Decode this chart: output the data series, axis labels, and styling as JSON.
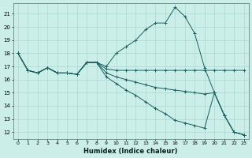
{
  "xlabel": "Humidex (Indice chaleur)",
  "bg_color": "#cceee8",
  "grid_color": "#aad8d2",
  "line_color": "#1a6060",
  "xlim": [
    -0.5,
    23.5
  ],
  "ylim": [
    11.5,
    21.8
  ],
  "yticks": [
    12,
    13,
    14,
    15,
    16,
    17,
    18,
    19,
    20,
    21
  ],
  "xticks": [
    0,
    1,
    2,
    3,
    4,
    5,
    6,
    7,
    8,
    9,
    10,
    11,
    12,
    13,
    14,
    15,
    16,
    17,
    18,
    19,
    20,
    21,
    22,
    23
  ],
  "lines": [
    {
      "x": [
        0,
        1,
        2,
        3,
        4,
        5,
        6,
        7,
        8,
        9,
        10,
        11,
        12,
        13,
        14,
        15,
        16,
        17,
        18,
        19,
        20,
        21,
        22,
        23
      ],
      "y": [
        18.0,
        16.7,
        16.5,
        16.9,
        16.5,
        16.5,
        16.4,
        17.3,
        17.3,
        17.0,
        18.0,
        18.5,
        19.0,
        19.8,
        20.3,
        20.3,
        21.5,
        20.8,
        19.5,
        16.9,
        15.0,
        13.3,
        12.0,
        11.8
      ]
    },
    {
      "x": [
        0,
        1,
        2,
        3,
        4,
        5,
        6,
        7,
        8,
        9,
        10,
        11,
        12,
        13,
        14,
        15,
        16,
        17,
        18,
        19,
        20,
        21,
        22,
        23
      ],
      "y": [
        18.0,
        16.7,
        16.5,
        16.9,
        16.5,
        16.5,
        16.4,
        17.3,
        17.3,
        16.8,
        16.7,
        16.7,
        16.7,
        16.7,
        16.7,
        16.7,
        16.7,
        16.7,
        16.7,
        16.7,
        16.7,
        16.7,
        16.7,
        16.7
      ]
    },
    {
      "x": [
        0,
        1,
        2,
        3,
        4,
        5,
        6,
        7,
        8,
        9,
        10,
        11,
        12,
        13,
        14,
        15,
        16,
        17,
        18,
        19,
        20,
        21,
        22,
        23
      ],
      "y": [
        18.0,
        16.7,
        16.5,
        16.9,
        16.5,
        16.5,
        16.4,
        17.3,
        17.3,
        16.5,
        16.2,
        16.0,
        15.8,
        15.6,
        15.4,
        15.3,
        15.2,
        15.1,
        15.0,
        14.9,
        15.0,
        13.3,
        12.0,
        11.8
      ]
    },
    {
      "x": [
        0,
        1,
        2,
        3,
        4,
        5,
        6,
        7,
        8,
        9,
        10,
        11,
        12,
        13,
        14,
        15,
        16,
        17,
        18,
        19,
        20,
        21,
        22,
        23
      ],
      "y": [
        18.0,
        16.7,
        16.5,
        16.9,
        16.5,
        16.5,
        16.4,
        17.3,
        17.3,
        16.2,
        15.7,
        15.2,
        14.8,
        14.3,
        13.8,
        13.4,
        12.9,
        12.7,
        12.5,
        12.3,
        15.0,
        13.3,
        12.0,
        11.8
      ]
    }
  ]
}
